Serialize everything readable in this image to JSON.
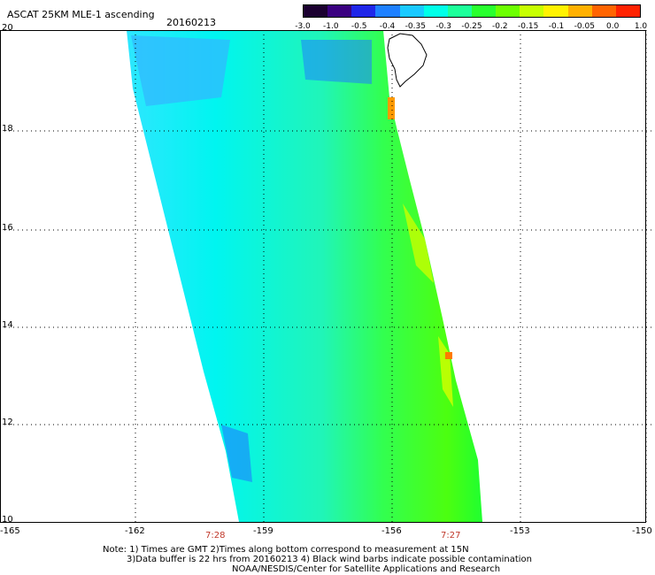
{
  "header": {
    "title": "ASCAT 25KM MLE-1 ascending",
    "date": "20160213"
  },
  "colorbar": {
    "colors": [
      "#1b0030",
      "#3a0080",
      "#1f26e8",
      "#1e80ff",
      "#19c9ff",
      "#00ffe8",
      "#1cff9a",
      "#28ff2e",
      "#6cff00",
      "#c7ff00",
      "#fff200",
      "#ffb000",
      "#ff6400",
      "#ff2200"
    ],
    "labels": [
      "-3.0",
      "-1.0",
      "-0.5",
      "-0.4",
      "-0.35",
      "-0.3",
      "-0.25",
      "-0.2",
      "-0.15",
      "-0.1",
      "-0.05",
      "0.0",
      "1.0"
    ]
  },
  "axes": {
    "y_labels": [
      "20",
      "18",
      "16",
      "14",
      "12",
      "10"
    ],
    "x_labels": [
      "-165",
      "-162",
      "-159",
      "-156",
      "-153",
      "-150"
    ],
    "times": [
      "7:28",
      "7:27"
    ]
  },
  "notes": {
    "line1": "Note: 1) Times are GMT 2)Times along bottom correspond to measurement at 15N",
    "line2": "3)Data buffer is 22 hrs from 20160213 4) Black wind barbs indicate possible contamination",
    "line3": "NOAA/NESDIS/Center for Satellite Applications and Research"
  },
  "map": {
    "swath_color": "#1ff5e6",
    "land_outline_color": "#000000"
  }
}
